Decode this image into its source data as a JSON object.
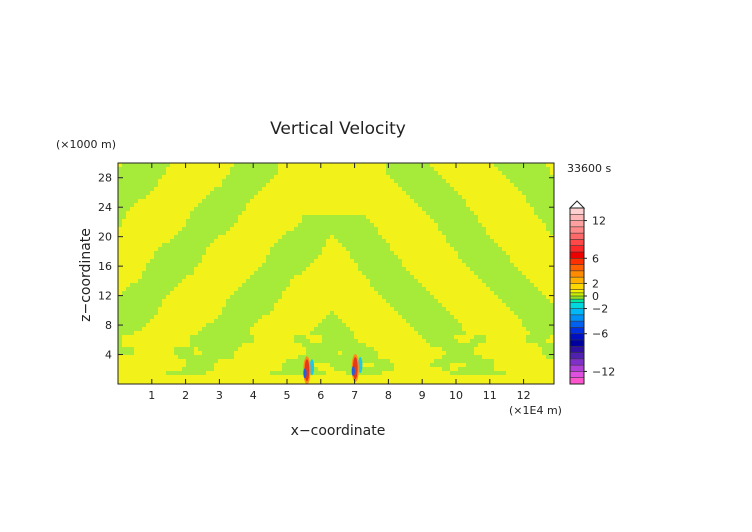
{
  "chart_data": {
    "type": "heatmap",
    "title": "Vertical Velocity",
    "time_label": "33600 s",
    "xlabel": "x−coordinate",
    "ylabel": "z−coordinate",
    "x_unit": "(×1E4 m)",
    "y_unit": "(×1000 m)",
    "xlim": [
      0,
      12.9
    ],
    "ylim": [
      0,
      30
    ],
    "x_ticks": [
      1,
      2,
      3,
      4,
      5,
      6,
      7,
      8,
      9,
      10,
      11,
      12
    ],
    "y_ticks": [
      4,
      8,
      12,
      16,
      20,
      24,
      28
    ],
    "colorbar": {
      "levels": [
        -14,
        -13,
        -12,
        -11,
        -10,
        -9,
        -8,
        -7,
        -6,
        -5,
        -4,
        -3,
        -2,
        -1,
        -0.5,
        0,
        0.5,
        1,
        2,
        3,
        4,
        5,
        6,
        7,
        8,
        9,
        10,
        11,
        12,
        13,
        14
      ],
      "tick_labels": [
        {
          "value": 12,
          "label": "12"
        },
        {
          "value": 6,
          "label": "6"
        },
        {
          "value": 2,
          "label": "2"
        },
        {
          "value": 0,
          "label": "0"
        },
        {
          "value": -2,
          "label": "−2"
        },
        {
          "value": -6,
          "label": "−6"
        },
        {
          "value": -12,
          "label": "−12"
        }
      ],
      "colors": [
        "#ff55cc",
        "#e050e0",
        "#b040d8",
        "#8030c8",
        "#5020b0",
        "#3010a0",
        "#0000a0",
        "#0010c0",
        "#0030e0",
        "#0060f0",
        "#0090f8",
        "#00b8f8",
        "#00d8e0",
        "#00e8a0",
        "#90e020",
        "#c8f000",
        "#f0f000",
        "#ffd800",
        "#ffb000",
        "#ff8c00",
        "#ff6000",
        "#ff3000",
        "#ee0000",
        "#ff2828",
        "#ff4848",
        "#ff6868",
        "#ff8888",
        "#ffa0a0",
        "#ffb8b8",
        "#ffd0d0"
      ],
      "extend": "max"
    },
    "field_colors": {
      "green": "#a6ea3a",
      "yellow": "#f2f21a",
      "red": "#e43a1a",
      "orange": "#ff8c1a",
      "cyan": "#20c8e8",
      "blue": "#2060e0"
    }
  }
}
